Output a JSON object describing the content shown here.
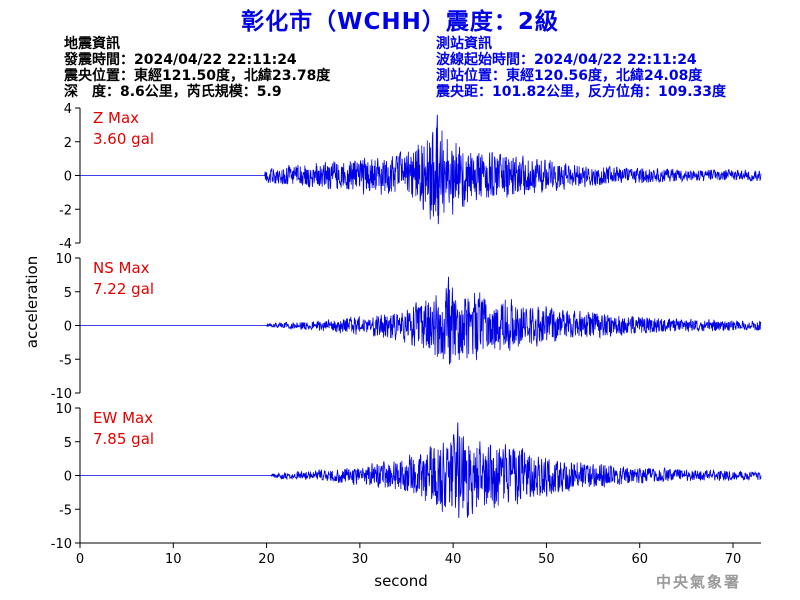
{
  "title": "彰化市（WCHH）震度：2級",
  "earthquake_info": {
    "heading": "地震資訊",
    "time": "發震時間：2024/04/22 22:11:24",
    "location": "震央位置：東經121.50度，北緯23.78度",
    "depth_magnitude": "深　度：8.6公里，芮氏規模：5.9"
  },
  "station_info": {
    "heading": "測站資訊",
    "wave_start": "波線起始時間：2024/04/22 22:11:24",
    "location": "測站位置：東經120.56度，北緯24.08度",
    "distance_azimuth": "震央距：101.82公里，反方位角：109.33度"
  },
  "agency": "中央氣象署",
  "chart_data": {
    "type": "line",
    "xlabel": "second",
    "ylabel": "acceleration",
    "xlim": [
      0,
      73
    ],
    "xticks": [
      0,
      10,
      20,
      30,
      40,
      50,
      60,
      70
    ],
    "grid": false,
    "line_color": "#0000e6",
    "label_color": "#e60000",
    "panels": [
      {
        "name": "Z",
        "label": "Z Max",
        "peak_text": "3.60 gal",
        "peak": 3.6,
        "ylim": [
          -4,
          4
        ],
        "yticks": [
          -4,
          -2,
          0,
          2,
          4
        ],
        "onset_seconds": 19.8,
        "peak_second": 38.3,
        "envelope": [
          [
            19.8,
            0.6
          ],
          [
            25,
            0.9
          ],
          [
            30,
            1.3
          ],
          [
            35,
            1.7
          ],
          [
            38.3,
            3.6
          ],
          [
            42,
            2.0
          ],
          [
            47,
            1.5
          ],
          [
            52,
            1.0
          ],
          [
            58,
            0.6
          ],
          [
            65,
            0.45
          ],
          [
            73,
            0.4
          ]
        ]
      },
      {
        "name": "NS",
        "label": "NS Max",
        "peak_text": "7.22 gal",
        "peak": 7.22,
        "ylim": [
          -10,
          10
        ],
        "yticks": [
          -10,
          -5,
          0,
          5,
          10
        ],
        "onset_seconds": 20.0,
        "peak_second": 39.5,
        "envelope": [
          [
            20,
            0.4
          ],
          [
            25,
            0.9
          ],
          [
            30,
            1.8
          ],
          [
            35,
            3.2
          ],
          [
            39.5,
            7.2
          ],
          [
            44,
            5.5
          ],
          [
            48,
            4.0
          ],
          [
            53,
            3.0
          ],
          [
            58,
            1.8
          ],
          [
            65,
            1.2
          ],
          [
            73,
            0.9
          ]
        ]
      },
      {
        "name": "EW",
        "label": "EW Max",
        "peak_text": "7.85 gal",
        "peak": 7.85,
        "ylim": [
          -10,
          10
        ],
        "yticks": [
          -10,
          -5,
          0,
          5,
          10
        ],
        "onset_seconds": 20.5,
        "peak_second": 40.5,
        "envelope": [
          [
            20.5,
            0.5
          ],
          [
            25,
            0.9
          ],
          [
            30,
            1.8
          ],
          [
            35,
            3.5
          ],
          [
            40.5,
            7.8
          ],
          [
            45,
            6.0
          ],
          [
            49,
            4.0
          ],
          [
            54,
            2.5
          ],
          [
            60,
            1.5
          ],
          [
            66,
            1.0
          ],
          [
            73,
            0.8
          ]
        ]
      }
    ]
  }
}
